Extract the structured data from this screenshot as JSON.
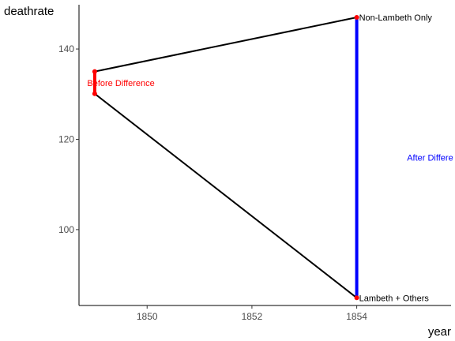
{
  "chart_data": {
    "type": "line",
    "xlabel": "year",
    "ylabel": "deathrate",
    "xlim": [
      1848.7,
      1855.8
    ],
    "ylim": [
      83.2,
      149.8
    ],
    "x_ticks": [
      {
        "value": 1850,
        "label": "1850"
      },
      {
        "value": 1852,
        "label": "1852"
      },
      {
        "value": 1854,
        "label": "1854"
      }
    ],
    "y_ticks": [
      {
        "value": 100,
        "label": "100"
      },
      {
        "value": 120,
        "label": "120"
      },
      {
        "value": 140,
        "label": "140"
      }
    ],
    "grid": false,
    "series": [
      {
        "key": "non-lambeth",
        "points": [
          {
            "x": 1849,
            "y": 135
          },
          {
            "x": 1854,
            "y": 147
          }
        ],
        "color": "#000000"
      },
      {
        "key": "lambeth",
        "points": [
          {
            "x": 1849,
            "y": 130.1
          },
          {
            "x": 1854,
            "y": 84.9
          }
        ],
        "color": "#000000"
      }
    ],
    "points": [
      {
        "x": 1849,
        "y": 135,
        "color": "#ff0000"
      },
      {
        "x": 1849,
        "y": 130.1,
        "color": "#ff0000"
      },
      {
        "x": 1854,
        "y": 147,
        "color": "#ff0000"
      },
      {
        "x": 1854,
        "y": 84.9,
        "color": "#ff0000"
      }
    ],
    "segments": [
      {
        "x": 1849,
        "y1": 130.1,
        "y2": 135,
        "color": "#ff0000"
      },
      {
        "x": 1854,
        "y1": 84.9,
        "y2": 147,
        "color": "#0000ff"
      }
    ],
    "annotations": [
      {
        "text": "Non-Lambeth Only",
        "x": 1854,
        "y": 147,
        "color": "#000000",
        "anchor": "start"
      },
      {
        "text": "Lambeth + Others",
        "x": 1854,
        "y": 84.9,
        "color": "#000000",
        "anchor": "start"
      },
      {
        "text": "Before Difference",
        "x": 1849.5,
        "y": 132.5,
        "color": "#ff0000",
        "anchor": "middle"
      },
      {
        "text": "After Differe",
        "x": 1855.4,
        "y": 116,
        "color": "#0000ff",
        "anchor": "middle"
      }
    ]
  }
}
